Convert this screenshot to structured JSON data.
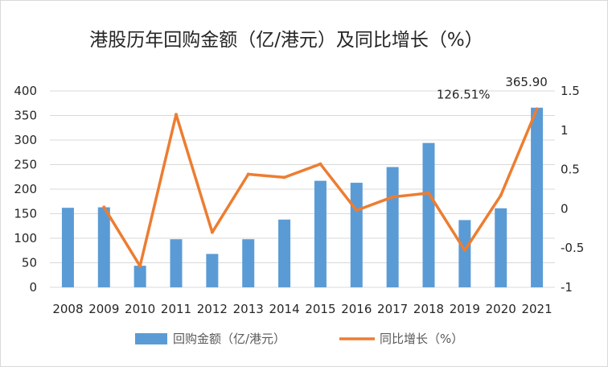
{
  "chart_data": {
    "type": "bar",
    "title": "港股历年回购金额（亿/港元）及同比增长（%）",
    "categories": [
      "2008",
      "2009",
      "2010",
      "2011",
      "2012",
      "2013",
      "2014",
      "2015",
      "2016",
      "2017",
      "2018",
      "2019",
      "2020",
      "2021"
    ],
    "y_left": {
      "ylim": [
        0,
        400
      ],
      "ticks": [
        "0",
        "50",
        "100",
        "150",
        "200",
        "250",
        "300",
        "350",
        "400"
      ]
    },
    "y_right": {
      "ylim": [
        -1,
        1.5
      ],
      "ticks": [
        "-1",
        "-0.5",
        "0",
        "0.5",
        "1",
        "1.5"
      ]
    },
    "grid": true,
    "legend_position": "bottom",
    "series": [
      {
        "name": "回购金额（亿/港元）",
        "type": "bar",
        "axis": "left",
        "color": "#5b9bd5",
        "values": [
          162,
          163,
          44,
          98,
          68,
          98,
          138,
          217,
          213,
          245,
          294,
          137,
          161,
          365.9
        ]
      },
      {
        "name": "同比增长（%）",
        "type": "line",
        "axis": "right",
        "color": "#ed7d31",
        "values": [
          null,
          0.02,
          -0.73,
          1.2,
          -0.3,
          0.44,
          0.4,
          0.57,
          -0.02,
          0.15,
          0.2,
          -0.53,
          0.17,
          1.27
        ]
      }
    ],
    "annotations": [
      {
        "text": "365.90",
        "category": "2021"
      },
      {
        "text": "126.51%",
        "category": "2021"
      }
    ]
  }
}
